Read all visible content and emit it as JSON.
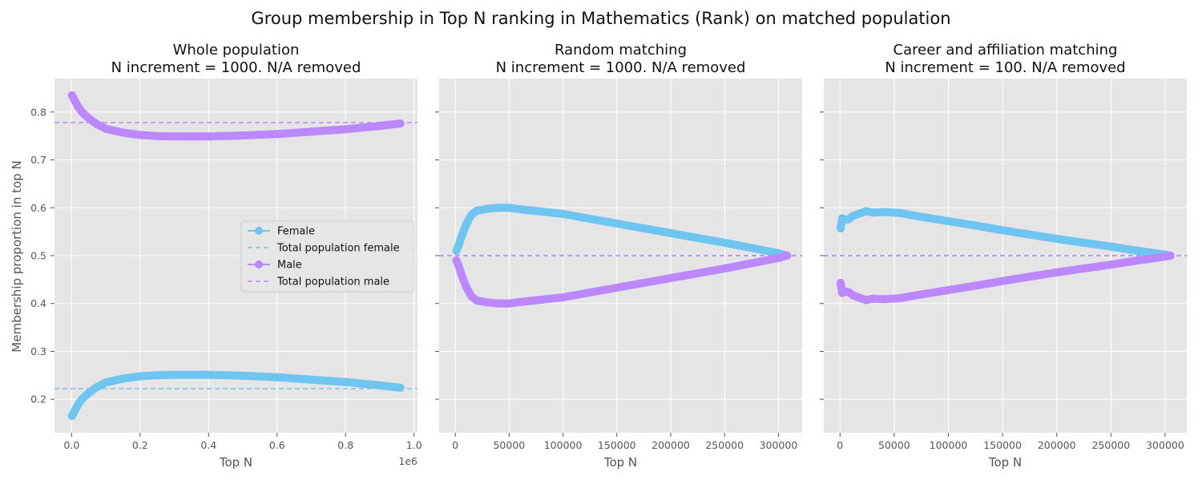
{
  "figure": {
    "suptitle": "Group membership in Top N ranking in Mathematics (Rank) on matched population",
    "ylabel": "Membership proportion in top N"
  },
  "colors": {
    "female": "#6ec6f0",
    "male": "#bb88ff",
    "plot_bg": "#e5e5e5",
    "grid": "#ffffff",
    "tick_text": "#555555",
    "label_text": "#555555"
  },
  "legend": {
    "placement": "center-right of first panel",
    "entries": [
      {
        "label": "Female",
        "kind": "line-marker",
        "color_key": "female"
      },
      {
        "label": "Total population female",
        "kind": "dashed",
        "color_key": "female"
      },
      {
        "label": "Male",
        "kind": "line-marker",
        "color_key": "male"
      },
      {
        "label": "Total population male",
        "kind": "dashed",
        "color_key": "male"
      }
    ]
  },
  "chart_data": [
    {
      "type": "scatter",
      "title_line1": "Whole population",
      "title_line2": "N increment = 1000. N/A removed",
      "xlabel": "Top N",
      "x_offset_text": "1e6",
      "xlim": [
        -50000,
        1010000
      ],
      "ylim": [
        0.13,
        0.87
      ],
      "xticks": [
        0,
        200000,
        400000,
        600000,
        800000,
        1000000
      ],
      "xtick_labels": [
        "0.0",
        "0.2",
        "0.4",
        "0.6",
        "0.8",
        "1.0"
      ],
      "yticks": [
        0.2,
        0.3,
        0.4,
        0.5,
        0.6,
        0.7,
        0.8
      ],
      "ytick_labels": [
        "0.2",
        "0.3",
        "0.4",
        "0.5",
        "0.6",
        "0.7",
        "0.8"
      ],
      "show_ytick_labels": true,
      "grid": true,
      "hlines": [
        {
          "y": 0.222,
          "color_key": "female",
          "name": "Total population female"
        },
        {
          "y": 0.778,
          "color_key": "male",
          "name": "Total population male"
        }
      ],
      "series": [
        {
          "name": "Female",
          "color_key": "female",
          "x": [
            1000,
            5000,
            10000,
            20000,
            30000,
            50000,
            75000,
            100000,
            150000,
            200000,
            250000,
            300000,
            400000,
            500000,
            600000,
            700000,
            800000,
            900000,
            960000
          ],
          "y": [
            0.165,
            0.17,
            0.177,
            0.19,
            0.2,
            0.213,
            0.226,
            0.235,
            0.243,
            0.248,
            0.25,
            0.251,
            0.251,
            0.249,
            0.246,
            0.241,
            0.236,
            0.229,
            0.224
          ]
        },
        {
          "name": "Male",
          "color_key": "male",
          "x": [
            1000,
            5000,
            10000,
            20000,
            30000,
            50000,
            75000,
            100000,
            150000,
            200000,
            250000,
            300000,
            400000,
            500000,
            600000,
            700000,
            800000,
            900000,
            960000
          ],
          "y": [
            0.835,
            0.83,
            0.823,
            0.81,
            0.8,
            0.787,
            0.774,
            0.765,
            0.757,
            0.752,
            0.75,
            0.749,
            0.749,
            0.751,
            0.754,
            0.759,
            0.764,
            0.771,
            0.776
          ]
        }
      ]
    },
    {
      "type": "scatter",
      "title_line1": "Random matching",
      "title_line2": "N increment = 1000. N/A removed",
      "xlabel": "Top N",
      "xlim": [
        -15000,
        322000
      ],
      "ylim": [
        0.13,
        0.87
      ],
      "xticks": [
        0,
        50000,
        100000,
        150000,
        200000,
        250000,
        300000
      ],
      "xtick_labels": [
        "0",
        "50000",
        "100000",
        "150000",
        "200000",
        "250000",
        "300000"
      ],
      "yticks": [
        0.2,
        0.3,
        0.4,
        0.5,
        0.6,
        0.7,
        0.8
      ],
      "show_ytick_labels": false,
      "grid": true,
      "hlines": [
        {
          "y": 0.5,
          "color_key": "female",
          "name": "Total population female"
        },
        {
          "y": 0.5,
          "color_key": "male",
          "name": "Total population male"
        }
      ],
      "series": [
        {
          "name": "Female",
          "color_key": "female",
          "x": [
            1000,
            3000,
            5000,
            10000,
            15000,
            20000,
            30000,
            40000,
            50000,
            60000,
            80000,
            100000,
            125000,
            150000,
            175000,
            200000,
            225000,
            250000,
            275000,
            300000,
            308000
          ],
          "y": [
            0.51,
            0.52,
            0.535,
            0.565,
            0.585,
            0.594,
            0.598,
            0.6,
            0.6,
            0.597,
            0.592,
            0.587,
            0.577,
            0.567,
            0.557,
            0.547,
            0.537,
            0.527,
            0.516,
            0.505,
            0.5
          ]
        },
        {
          "name": "Male",
          "color_key": "male",
          "x": [
            1000,
            3000,
            5000,
            10000,
            15000,
            20000,
            30000,
            40000,
            50000,
            60000,
            80000,
            100000,
            125000,
            150000,
            175000,
            200000,
            225000,
            250000,
            275000,
            300000,
            308000
          ],
          "y": [
            0.49,
            0.48,
            0.465,
            0.435,
            0.415,
            0.406,
            0.402,
            0.4,
            0.4,
            0.403,
            0.408,
            0.413,
            0.423,
            0.433,
            0.443,
            0.453,
            0.463,
            0.473,
            0.484,
            0.495,
            0.5
          ]
        }
      ]
    },
    {
      "type": "scatter",
      "title_line1": "Career and affiliation matching",
      "title_line2": "N increment = 100. N/A removed",
      "xlabel": "Top N",
      "xlim": [
        -15000,
        320000
      ],
      "ylim": [
        0.13,
        0.87
      ],
      "xticks": [
        0,
        50000,
        100000,
        150000,
        200000,
        250000,
        300000
      ],
      "xtick_labels": [
        "0",
        "50000",
        "100000",
        "150000",
        "200000",
        "250000",
        "300000"
      ],
      "yticks": [
        0.2,
        0.3,
        0.4,
        0.5,
        0.6,
        0.7,
        0.8
      ],
      "show_ytick_labels": false,
      "grid": true,
      "hlines": [
        {
          "y": 0.5,
          "color_key": "female",
          "name": "Total population female"
        },
        {
          "y": 0.5,
          "color_key": "male",
          "name": "Total population male"
        }
      ],
      "series": [
        {
          "name": "Female",
          "color_key": "female",
          "x": [
            500,
            2000,
            5000,
            8000,
            12000,
            18000,
            24000,
            30000,
            40000,
            55000,
            75000,
            100000,
            125000,
            150000,
            175000,
            200000,
            225000,
            250000,
            275000,
            300000,
            305000
          ],
          "y": [
            0.557,
            0.578,
            0.575,
            0.576,
            0.583,
            0.588,
            0.593,
            0.59,
            0.591,
            0.589,
            0.581,
            0.572,
            0.563,
            0.553,
            0.544,
            0.535,
            0.527,
            0.519,
            0.51,
            0.502,
            0.5
          ]
        },
        {
          "name": "Male",
          "color_key": "male",
          "x": [
            500,
            2000,
            5000,
            8000,
            12000,
            18000,
            24000,
            30000,
            40000,
            55000,
            75000,
            100000,
            125000,
            150000,
            175000,
            200000,
            225000,
            250000,
            275000,
            300000,
            305000
          ],
          "y": [
            0.443,
            0.422,
            0.425,
            0.424,
            0.417,
            0.412,
            0.407,
            0.41,
            0.409,
            0.411,
            0.419,
            0.428,
            0.437,
            0.447,
            0.456,
            0.465,
            0.473,
            0.481,
            0.49,
            0.498,
            0.5
          ]
        }
      ]
    }
  ]
}
